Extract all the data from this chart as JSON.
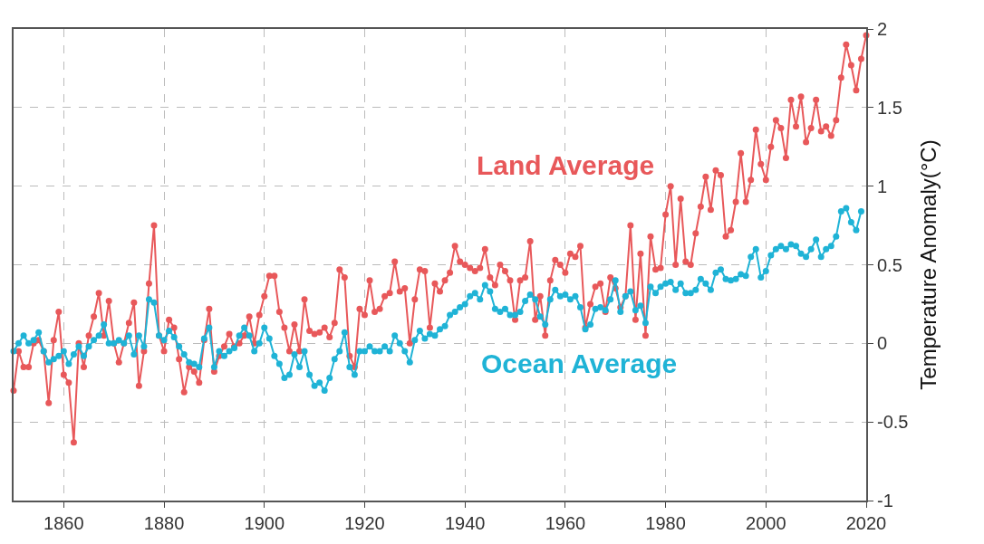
{
  "chart_data": {
    "type": "line",
    "ylabel": "Temperature Anomaly(°C)",
    "x": [
      1850,
      1851,
      1852,
      1853,
      1854,
      1855,
      1856,
      1857,
      1858,
      1859,
      1860,
      1861,
      1862,
      1863,
      1864,
      1865,
      1866,
      1867,
      1868,
      1869,
      1870,
      1871,
      1872,
      1873,
      1874,
      1875,
      1876,
      1877,
      1878,
      1879,
      1880,
      1881,
      1882,
      1883,
      1884,
      1885,
      1886,
      1887,
      1888,
      1889,
      1890,
      1891,
      1892,
      1893,
      1894,
      1895,
      1896,
      1897,
      1898,
      1899,
      1900,
      1901,
      1902,
      1903,
      1904,
      1905,
      1906,
      1907,
      1908,
      1909,
      1910,
      1911,
      1912,
      1913,
      1914,
      1915,
      1916,
      1917,
      1918,
      1919,
      1920,
      1921,
      1922,
      1923,
      1924,
      1925,
      1926,
      1927,
      1928,
      1929,
      1930,
      1931,
      1932,
      1933,
      1934,
      1935,
      1936,
      1937,
      1938,
      1939,
      1940,
      1941,
      1942,
      1943,
      1944,
      1945,
      1946,
      1947,
      1948,
      1949,
      1950,
      1951,
      1952,
      1953,
      1954,
      1955,
      1956,
      1957,
      1958,
      1959,
      1960,
      1961,
      1962,
      1963,
      1964,
      1965,
      1966,
      1967,
      1968,
      1969,
      1970,
      1971,
      1972,
      1973,
      1974,
      1975,
      1976,
      1977,
      1978,
      1979,
      1980,
      1981,
      1982,
      1983,
      1984,
      1985,
      1986,
      1987,
      1988,
      1989,
      1990,
      1991,
      1992,
      1993,
      1994,
      1995,
      1996,
      1997,
      1998,
      1999,
      2000,
      2001,
      2002,
      2003,
      2004,
      2005,
      2006,
      2007,
      2008,
      2009,
      2010,
      2011,
      2012,
      2013,
      2014,
      2015,
      2016,
      2017,
      2018,
      2019,
      2020
    ],
    "series": [
      {
        "name": "Land Average",
        "color": "#e8585a",
        "values": [
          -0.3,
          -0.05,
          -0.15,
          -0.15,
          0.0,
          0.02,
          -0.05,
          -0.38,
          0.02,
          0.2,
          -0.2,
          -0.25,
          -0.63,
          0.0,
          -0.15,
          0.05,
          0.17,
          0.32,
          0.05,
          0.27,
          0.0,
          -0.12,
          0.0,
          0.13,
          0.26,
          -0.27,
          -0.05,
          0.38,
          0.75,
          0.05,
          -0.05,
          0.15,
          0.1,
          -0.1,
          -0.31,
          -0.15,
          -0.18,
          -0.25,
          0.02,
          0.22,
          -0.18,
          -0.08,
          -0.02,
          0.06,
          -0.02,
          0.0,
          0.05,
          0.17,
          0.0,
          0.18,
          0.3,
          0.43,
          0.43,
          0.2,
          0.1,
          -0.05,
          0.12,
          -0.05,
          0.28,
          0.08,
          0.06,
          0.07,
          0.1,
          0.04,
          0.13,
          0.47,
          0.42,
          -0.08,
          -0.15,
          0.22,
          0.18,
          0.4,
          0.2,
          0.22,
          0.3,
          0.32,
          0.52,
          0.33,
          0.35,
          0.0,
          0.28,
          0.47,
          0.46,
          0.1,
          0.38,
          0.33,
          0.4,
          0.45,
          0.62,
          0.52,
          0.5,
          0.48,
          0.46,
          0.48,
          0.6,
          0.42,
          0.37,
          0.5,
          0.46,
          0.4,
          0.15,
          0.4,
          0.42,
          0.65,
          0.15,
          0.3,
          0.05,
          0.4,
          0.53,
          0.5,
          0.45,
          0.57,
          0.55,
          0.62,
          0.1,
          0.25,
          0.36,
          0.38,
          0.2,
          0.42,
          0.35,
          0.23,
          0.3,
          0.75,
          0.15,
          0.57,
          0.05,
          0.68,
          0.47,
          0.48,
          0.82,
          1.0,
          0.5,
          0.92,
          0.52,
          0.5,
          0.7,
          0.87,
          1.06,
          0.85,
          1.1,
          1.07,
          0.68,
          0.72,
          0.9,
          1.21,
          0.9,
          1.04,
          1.36,
          1.14,
          1.04,
          1.25,
          1.42,
          1.37,
          1.18,
          1.55,
          1.38,
          1.57,
          1.28,
          1.37,
          1.55,
          1.35,
          1.38,
          1.32,
          1.42,
          1.69,
          1.9,
          1.77,
          1.61,
          1.81,
          1.96
        ]
      },
      {
        "name": "Ocean Average",
        "color": "#1fb3d6",
        "values": [
          -0.05,
          0.0,
          0.05,
          0.0,
          0.02,
          0.07,
          -0.05,
          -0.12,
          -0.1,
          -0.08,
          -0.05,
          -0.13,
          -0.07,
          -0.02,
          -0.08,
          -0.02,
          0.02,
          0.05,
          0.12,
          0.0,
          0.0,
          0.02,
          0.0,
          0.05,
          -0.07,
          0.05,
          -0.02,
          0.28,
          0.26,
          0.05,
          0.02,
          0.08,
          0.04,
          -0.02,
          -0.07,
          -0.12,
          -0.13,
          -0.15,
          0.03,
          0.1,
          -0.15,
          -0.05,
          -0.08,
          -0.05,
          -0.03,
          0.05,
          0.1,
          0.05,
          -0.05,
          0.0,
          0.1,
          0.03,
          -0.08,
          -0.13,
          -0.22,
          -0.2,
          -0.07,
          -0.15,
          -0.05,
          -0.2,
          -0.27,
          -0.25,
          -0.3,
          -0.22,
          -0.1,
          -0.05,
          0.07,
          -0.15,
          -0.2,
          -0.05,
          -0.05,
          -0.02,
          -0.05,
          -0.05,
          -0.02,
          -0.05,
          0.05,
          0.0,
          -0.05,
          -0.12,
          0.02,
          0.08,
          0.03,
          0.06,
          0.05,
          0.09,
          0.11,
          0.18,
          0.2,
          0.23,
          0.25,
          0.3,
          0.32,
          0.28,
          0.37,
          0.33,
          0.22,
          0.2,
          0.22,
          0.18,
          0.18,
          0.2,
          0.27,
          0.31,
          0.28,
          0.17,
          0.12,
          0.28,
          0.34,
          0.3,
          0.31,
          0.28,
          0.3,
          0.23,
          0.09,
          0.12,
          0.22,
          0.23,
          0.21,
          0.28,
          0.4,
          0.2,
          0.3,
          0.33,
          0.21,
          0.24,
          0.13,
          0.36,
          0.32,
          0.36,
          0.38,
          0.39,
          0.34,
          0.38,
          0.32,
          0.32,
          0.34,
          0.41,
          0.38,
          0.34,
          0.45,
          0.47,
          0.41,
          0.4,
          0.41,
          0.44,
          0.43,
          0.55,
          0.6,
          0.42,
          0.46,
          0.56,
          0.6,
          0.62,
          0.6,
          0.63,
          0.62,
          0.57,
          0.55,
          0.6,
          0.66,
          0.55,
          0.6,
          0.62,
          0.68,
          0.84,
          0.86,
          0.77,
          0.72,
          0.84,
          null
        ]
      }
    ],
    "xlim": [
      1850,
      2020
    ],
    "xticks": [
      1860,
      1880,
      1900,
      1920,
      1940,
      1960,
      1980,
      2000,
      2020
    ],
    "ylim": [
      -1,
      2
    ],
    "yticks": [
      -1,
      -0.5,
      0,
      0.5,
      1,
      1.5,
      2
    ],
    "grid": true,
    "marker": "circle",
    "line_style": "solid"
  }
}
